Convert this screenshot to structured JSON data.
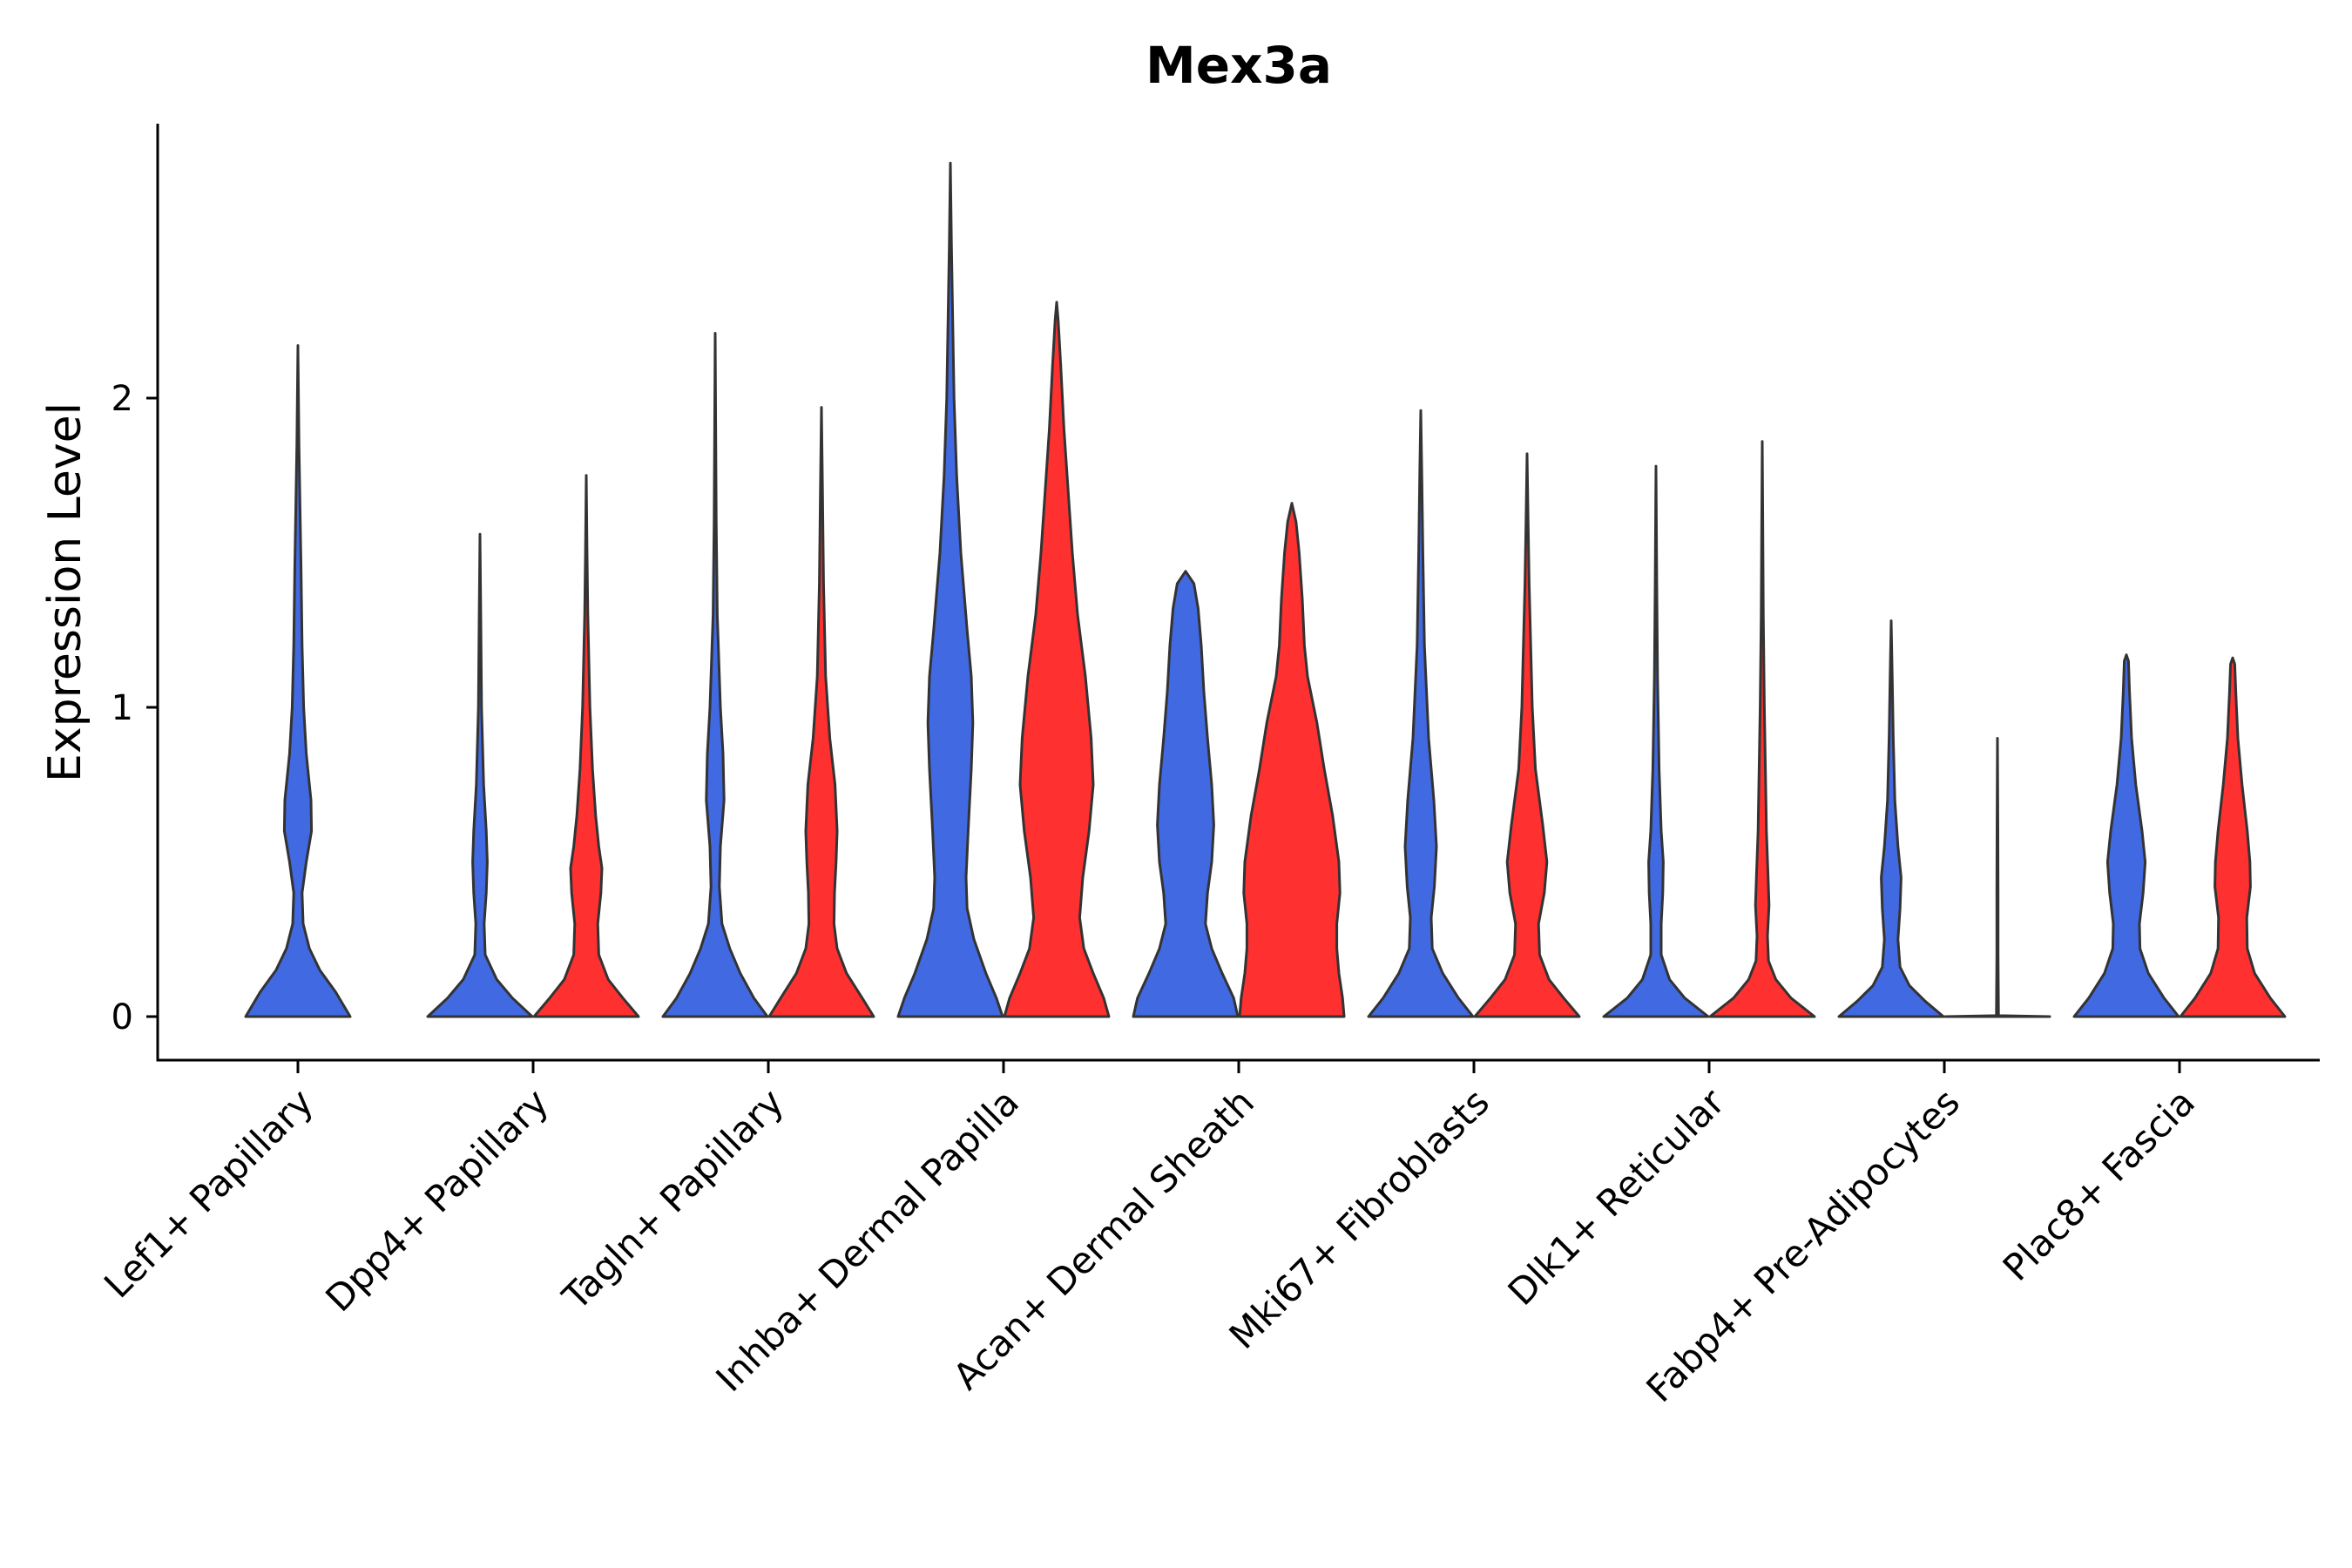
{
  "chart_data": {
    "type": "violin",
    "title": "Mex3a",
    "xlabel": "",
    "ylabel": "Expression Level",
    "ylim": [
      -0.14,
      2.9
    ],
    "yticks": [
      0,
      1,
      2
    ],
    "categories": [
      "Lef1+ Papillary",
      "Dpp4+ Papillary",
      "Tagln+ Papillary",
      "Inhba+ Dermal Papilla",
      "Acan+ Dermal Sheath",
      "Mki67+ Fibroblasts",
      "Dlk1+ Reticular",
      "Fabp4+ Pre-Adipocytes",
      "Plac8+ Fascia"
    ],
    "colors": {
      "blue": "#4169E1",
      "red": "#FF3030",
      "outline": "#333333"
    },
    "series": [
      {
        "name": "blue",
        "color": "#4169E1",
        "max_values": [
          2.17,
          1.56,
          2.21,
          2.76,
          1.44,
          1.96,
          1.78,
          1.28,
          1.17
        ],
        "profiles": [
          [
            [
              0,
              1.0
            ],
            [
              0.08,
              0.72
            ],
            [
              0.15,
              0.42
            ],
            [
              0.22,
              0.22
            ],
            [
              0.3,
              0.1
            ],
            [
              0.4,
              0.08
            ],
            [
              0.5,
              0.16
            ],
            [
              0.6,
              0.26
            ],
            [
              0.7,
              0.25
            ],
            [
              0.85,
              0.16
            ],
            [
              1.0,
              0.11
            ],
            [
              1.2,
              0.08
            ],
            [
              1.45,
              0.06
            ],
            [
              1.65,
              0.04
            ],
            [
              1.85,
              0.02
            ],
            [
              2.17,
              0
            ]
          ],
          [
            [
              0,
              1.0
            ],
            [
              0.06,
              0.62
            ],
            [
              0.12,
              0.32
            ],
            [
              0.2,
              0.1
            ],
            [
              0.3,
              0.08
            ],
            [
              0.4,
              0.12
            ],
            [
              0.5,
              0.14
            ],
            [
              0.6,
              0.12
            ],
            [
              0.75,
              0.07
            ],
            [
              1.0,
              0.03
            ],
            [
              1.3,
              0.015
            ],
            [
              1.56,
              0
            ]
          ],
          [
            [
              0,
              1.0
            ],
            [
              0.06,
              0.74
            ],
            [
              0.14,
              0.48
            ],
            [
              0.22,
              0.28
            ],
            [
              0.3,
              0.13
            ],
            [
              0.42,
              0.08
            ],
            [
              0.55,
              0.1
            ],
            [
              0.7,
              0.17
            ],
            [
              0.85,
              0.15
            ],
            [
              1.0,
              0.1
            ],
            [
              1.3,
              0.04
            ],
            [
              1.6,
              0.02
            ],
            [
              1.9,
              0.01
            ],
            [
              2.21,
              0
            ]
          ],
          [
            [
              0,
              1.0
            ],
            [
              0.06,
              0.88
            ],
            [
              0.14,
              0.68
            ],
            [
              0.25,
              0.45
            ],
            [
              0.35,
              0.32
            ],
            [
              0.45,
              0.3
            ],
            [
              0.6,
              0.34
            ],
            [
              0.8,
              0.4
            ],
            [
              0.95,
              0.43
            ],
            [
              1.1,
              0.4
            ],
            [
              1.25,
              0.32
            ],
            [
              1.5,
              0.2
            ],
            [
              1.75,
              0.12
            ],
            [
              2.0,
              0.07
            ],
            [
              2.3,
              0.04
            ],
            [
              2.5,
              0.02
            ],
            [
              2.76,
              0
            ]
          ],
          [
            [
              0,
              1.0
            ],
            [
              0.06,
              0.92
            ],
            [
              0.14,
              0.7
            ],
            [
              0.22,
              0.5
            ],
            [
              0.3,
              0.38
            ],
            [
              0.4,
              0.42
            ],
            [
              0.5,
              0.5
            ],
            [
              0.62,
              0.54
            ],
            [
              0.75,
              0.5
            ],
            [
              0.9,
              0.42
            ],
            [
              1.05,
              0.35
            ],
            [
              1.2,
              0.3
            ],
            [
              1.32,
              0.24
            ],
            [
              1.4,
              0.16
            ],
            [
              1.44,
              0
            ]
          ],
          [
            [
              0,
              1.0
            ],
            [
              0.06,
              0.72
            ],
            [
              0.14,
              0.42
            ],
            [
              0.22,
              0.22
            ],
            [
              0.32,
              0.2
            ],
            [
              0.42,
              0.26
            ],
            [
              0.55,
              0.3
            ],
            [
              0.7,
              0.25
            ],
            [
              0.9,
              0.15
            ],
            [
              1.2,
              0.07
            ],
            [
              1.5,
              0.04
            ],
            [
              1.75,
              0.02
            ],
            [
              1.96,
              0
            ]
          ],
          [
            [
              0,
              1.0
            ],
            [
              0.06,
              0.55
            ],
            [
              0.12,
              0.26
            ],
            [
              0.2,
              0.1
            ],
            [
              0.3,
              0.1
            ],
            [
              0.4,
              0.13
            ],
            [
              0.5,
              0.14
            ],
            [
              0.6,
              0.1
            ],
            [
              0.8,
              0.06
            ],
            [
              1.1,
              0.03
            ],
            [
              1.4,
              0.015
            ],
            [
              1.78,
              0
            ]
          ],
          [
            [
              0,
              1.0
            ],
            [
              0.05,
              0.65
            ],
            [
              0.1,
              0.35
            ],
            [
              0.16,
              0.17
            ],
            [
              0.25,
              0.13
            ],
            [
              0.35,
              0.17
            ],
            [
              0.45,
              0.19
            ],
            [
              0.55,
              0.13
            ],
            [
              0.7,
              0.07
            ],
            [
              0.9,
              0.04
            ],
            [
              1.1,
              0.02
            ],
            [
              1.28,
              0
            ]
          ],
          [
            [
              0,
              1.0
            ],
            [
              0.06,
              0.72
            ],
            [
              0.14,
              0.42
            ],
            [
              0.22,
              0.26
            ],
            [
              0.3,
              0.25
            ],
            [
              0.4,
              0.32
            ],
            [
              0.5,
              0.36
            ],
            [
              0.6,
              0.3
            ],
            [
              0.75,
              0.18
            ],
            [
              0.9,
              0.1
            ],
            [
              1.05,
              0.06
            ],
            [
              1.15,
              0.04
            ],
            [
              1.17,
              0
            ]
          ]
        ]
      },
      {
        "name": "red",
        "color": "#FF3030",
        "max_values": [
          1.75,
          1.97,
          2.31,
          1.66,
          1.82,
          1.86,
          0.9,
          1.16
        ],
        "profiles": [
          [
            [
              0,
              1.0
            ],
            [
              0.06,
              0.7
            ],
            [
              0.12,
              0.42
            ],
            [
              0.2,
              0.24
            ],
            [
              0.3,
              0.22
            ],
            [
              0.4,
              0.28
            ],
            [
              0.48,
              0.3
            ],
            [
              0.55,
              0.24
            ],
            [
              0.65,
              0.18
            ],
            [
              0.8,
              0.12
            ],
            [
              1.0,
              0.07
            ],
            [
              1.3,
              0.03
            ],
            [
              1.5,
              0.015
            ],
            [
              1.75,
              0
            ]
          ],
          [
            [
              0,
              1.0
            ],
            [
              0.06,
              0.78
            ],
            [
              0.14,
              0.48
            ],
            [
              0.22,
              0.3
            ],
            [
              0.3,
              0.24
            ],
            [
              0.4,
              0.25
            ],
            [
              0.5,
              0.28
            ],
            [
              0.6,
              0.3
            ],
            [
              0.75,
              0.26
            ],
            [
              0.9,
              0.16
            ],
            [
              1.1,
              0.08
            ],
            [
              1.4,
              0.04
            ],
            [
              1.7,
              0.02
            ],
            [
              1.97,
              0
            ]
          ],
          [
            [
              0,
              1.0
            ],
            [
              0.06,
              0.9
            ],
            [
              0.14,
              0.7
            ],
            [
              0.22,
              0.52
            ],
            [
              0.32,
              0.44
            ],
            [
              0.45,
              0.5
            ],
            [
              0.6,
              0.62
            ],
            [
              0.75,
              0.7
            ],
            [
              0.9,
              0.66
            ],
            [
              1.1,
              0.55
            ],
            [
              1.3,
              0.4
            ],
            [
              1.5,
              0.3
            ],
            [
              1.7,
              0.22
            ],
            [
              1.9,
              0.14
            ],
            [
              2.1,
              0.08
            ],
            [
              2.25,
              0.03
            ],
            [
              2.31,
              0
            ]
          ],
          [
            [
              0,
              1.0
            ],
            [
              0.06,
              0.97
            ],
            [
              0.14,
              0.9
            ],
            [
              0.22,
              0.86
            ],
            [
              0.3,
              0.86
            ],
            [
              0.4,
              0.92
            ],
            [
              0.5,
              0.9
            ],
            [
              0.65,
              0.78
            ],
            [
              0.8,
              0.62
            ],
            [
              0.95,
              0.48
            ],
            [
              1.1,
              0.3
            ],
            [
              1.2,
              0.24
            ],
            [
              1.35,
              0.2
            ],
            [
              1.5,
              0.14
            ],
            [
              1.6,
              0.08
            ],
            [
              1.66,
              0
            ]
          ],
          [
            [
              0,
              1.0
            ],
            [
              0.06,
              0.7
            ],
            [
              0.12,
              0.42
            ],
            [
              0.2,
              0.24
            ],
            [
              0.3,
              0.22
            ],
            [
              0.4,
              0.33
            ],
            [
              0.5,
              0.38
            ],
            [
              0.62,
              0.3
            ],
            [
              0.8,
              0.16
            ],
            [
              1.0,
              0.1
            ],
            [
              1.2,
              0.07
            ],
            [
              1.4,
              0.04
            ],
            [
              1.6,
              0.02
            ],
            [
              1.82,
              0
            ]
          ],
          [
            [
              0,
              1.0
            ],
            [
              0.06,
              0.55
            ],
            [
              0.12,
              0.26
            ],
            [
              0.18,
              0.12
            ],
            [
              0.26,
              0.1
            ],
            [
              0.36,
              0.13
            ],
            [
              0.46,
              0.11
            ],
            [
              0.6,
              0.08
            ],
            [
              0.8,
              0.06
            ],
            [
              1.0,
              0.04
            ],
            [
              1.3,
              0.02
            ],
            [
              1.6,
              0.01
            ],
            [
              1.86,
              0
            ]
          ],
          [
            [
              0,
              1.0
            ],
            [
              0.003,
              0.02
            ],
            [
              0.2,
              0.012
            ],
            [
              0.4,
              0.012
            ],
            [
              0.6,
              0.008
            ],
            [
              0.9,
              0
            ]
          ],
          [
            [
              0,
              1.0
            ],
            [
              0.06,
              0.72
            ],
            [
              0.14,
              0.42
            ],
            [
              0.22,
              0.28
            ],
            [
              0.32,
              0.27
            ],
            [
              0.42,
              0.34
            ],
            [
              0.5,
              0.33
            ],
            [
              0.6,
              0.28
            ],
            [
              0.75,
              0.18
            ],
            [
              0.9,
              0.1
            ],
            [
              1.05,
              0.06
            ],
            [
              1.14,
              0.04
            ],
            [
              1.16,
              0
            ]
          ]
        ]
      }
    ],
    "groups": [
      {
        "category": "Lef1+ Papillary",
        "violins": [
          {
            "series": "blue",
            "index": 0
          }
        ]
      },
      {
        "category": "Dpp4+ Papillary",
        "violins": [
          {
            "series": "blue",
            "index": 1
          },
          {
            "series": "red",
            "index": 0
          }
        ]
      },
      {
        "category": "Tagln+ Papillary",
        "violins": [
          {
            "series": "blue",
            "index": 2
          },
          {
            "series": "red",
            "index": 1
          }
        ]
      },
      {
        "category": "Inhba+ Dermal Papilla",
        "violins": [
          {
            "series": "blue",
            "index": 3
          },
          {
            "series": "red",
            "index": 2
          }
        ]
      },
      {
        "category": "Acan+ Dermal Sheath",
        "violins": [
          {
            "series": "blue",
            "index": 4
          },
          {
            "series": "red",
            "index": 3
          }
        ]
      },
      {
        "category": "Mki67+ Fibroblasts",
        "violins": [
          {
            "series": "blue",
            "index": 5
          },
          {
            "series": "red",
            "index": 4
          }
        ]
      },
      {
        "category": "Dlk1+ Reticular",
        "violins": [
          {
            "series": "blue",
            "index": 6
          },
          {
            "series": "red",
            "index": 5
          }
        ]
      },
      {
        "category": "Fabp4+ Pre-Adipocytes",
        "violins": [
          {
            "series": "blue",
            "index": 7
          },
          {
            "series": "red",
            "index": 6
          }
        ]
      },
      {
        "category": "Plac8+ Fascia",
        "violins": [
          {
            "series": "blue",
            "index": 8
          },
          {
            "series": "red",
            "index": 7
          }
        ]
      }
    ],
    "grid": false,
    "legend": "none"
  }
}
